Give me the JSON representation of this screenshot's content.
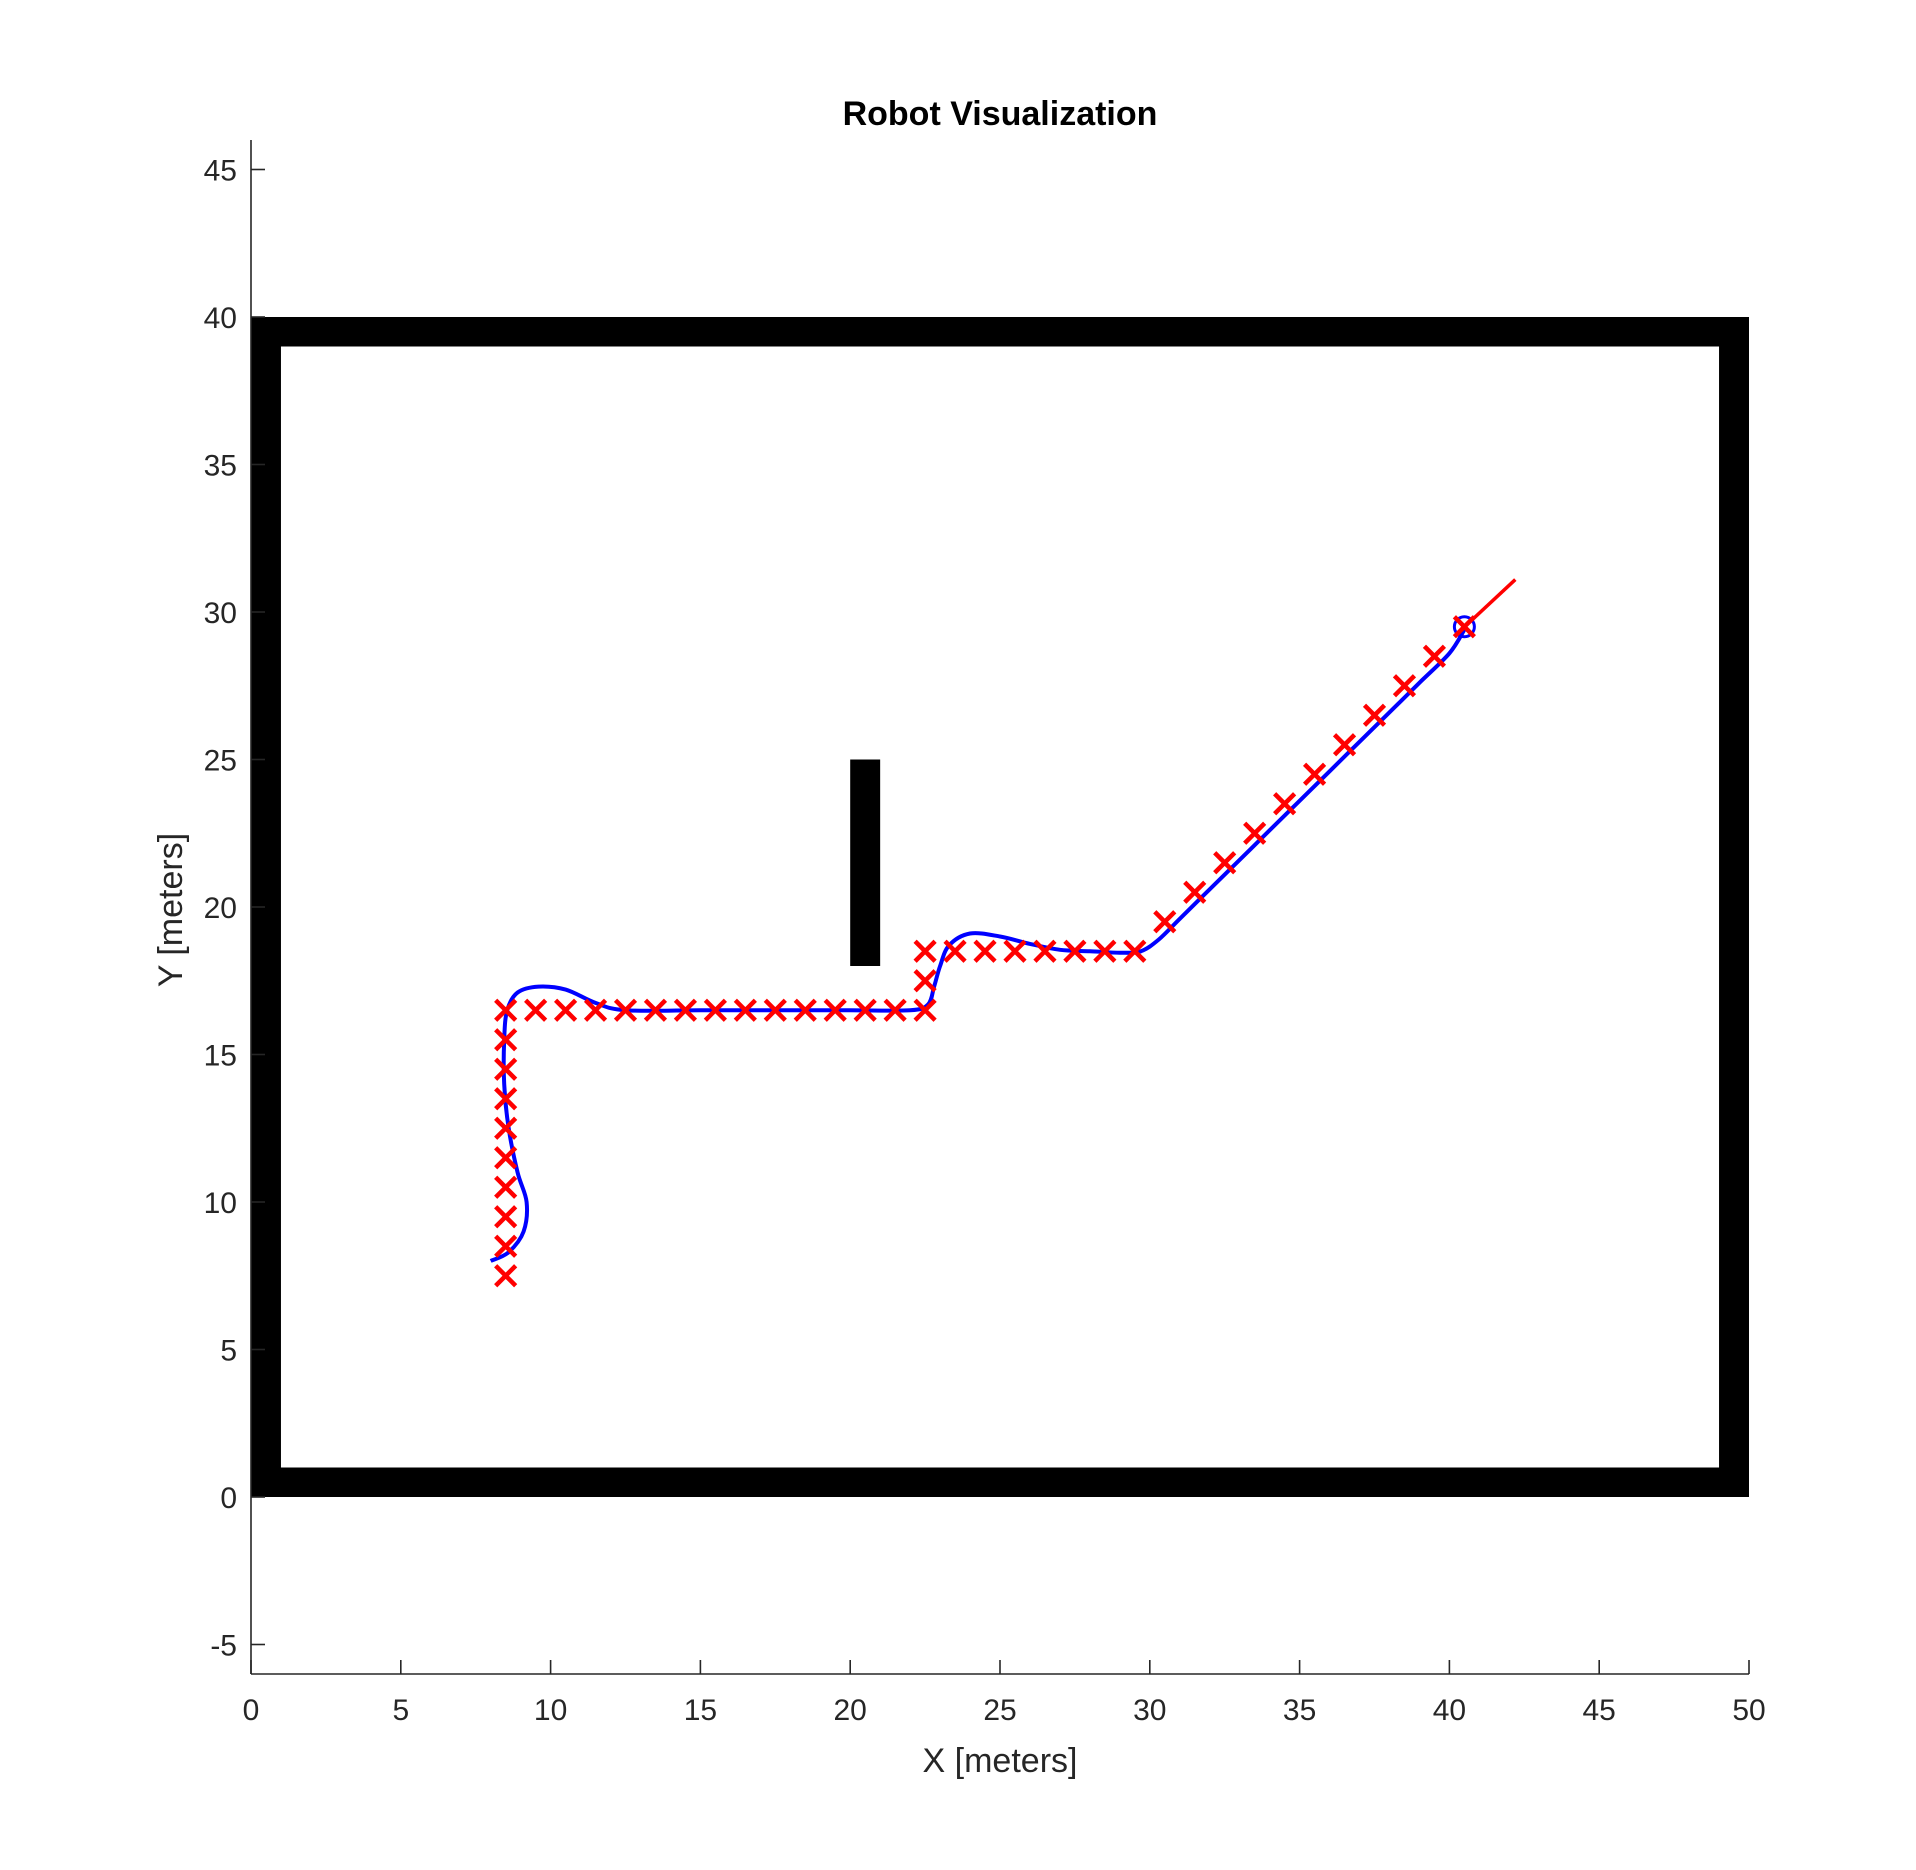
{
  "chart_data": {
    "type": "scatter",
    "title": "Robot Visualization",
    "xlabel": "X [meters]",
    "ylabel": "Y [meters]",
    "xlim": [
      0,
      50
    ],
    "ylim": [
      -6,
      46
    ],
    "xticks": [
      0,
      5,
      10,
      15,
      20,
      25,
      30,
      35,
      40,
      45,
      50
    ],
    "yticks": [
      -5,
      0,
      5,
      10,
      15,
      20,
      25,
      30,
      35,
      40,
      45
    ],
    "grid": false,
    "colors": {
      "walls": "#000000",
      "path": "#0000ff",
      "waypoints": "#ff0000",
      "heading": "#ff0000"
    },
    "walls": [
      {
        "name": "top wall",
        "x": [
          0,
          50
        ],
        "y": [
          39,
          40
        ]
      },
      {
        "name": "bottom wall",
        "x": [
          0,
          50
        ],
        "y": [
          0,
          1
        ]
      },
      {
        "name": "left wall",
        "x": [
          0,
          1
        ],
        "y": [
          0,
          40
        ]
      },
      {
        "name": "right wall",
        "x": [
          49,
          50
        ],
        "y": [
          0,
          40
        ]
      },
      {
        "name": "obstacle",
        "x": [
          20,
          21
        ],
        "y": [
          18,
          25
        ]
      }
    ],
    "waypoints": {
      "marker": "x",
      "x": [
        8.5,
        8.5,
        8.5,
        8.5,
        8.5,
        8.5,
        8.5,
        8.5,
        8.5,
        8.5,
        9.5,
        10.5,
        11.5,
        12.5,
        13.5,
        14.5,
        15.5,
        16.5,
        17.5,
        18.5,
        19.5,
        20.5,
        21.5,
        22.5,
        22.5,
        22.5,
        23.5,
        24.5,
        25.5,
        26.5,
        27.5,
        28.5,
        29.5,
        30.5,
        31.5,
        32.5,
        33.5,
        34.5,
        35.5,
        36.5,
        37.5,
        38.5,
        39.5,
        40.5
      ],
      "y": [
        7.5,
        8.5,
        9.5,
        10.5,
        11.5,
        12.5,
        13.5,
        14.5,
        15.5,
        16.5,
        16.5,
        16.5,
        16.5,
        16.5,
        16.5,
        16.5,
        16.5,
        16.5,
        16.5,
        16.5,
        16.5,
        16.5,
        16.5,
        16.5,
        17.5,
        18.5,
        18.5,
        18.5,
        18.5,
        18.5,
        18.5,
        18.5,
        18.5,
        19.5,
        20.5,
        21.5,
        22.5,
        23.5,
        24.5,
        25.5,
        26.5,
        27.5,
        28.5,
        29.5
      ]
    },
    "path": {
      "x": [
        8.0,
        8.6,
        9.1,
        9.2,
        8.9,
        8.6,
        8.45,
        8.45,
        8.55,
        8.9,
        9.6,
        10.5,
        11.5,
        12.5,
        15,
        18,
        20,
        22,
        22.6,
        22.8,
        23.0,
        23.3,
        24.0,
        25.0,
        26.0,
        27.0,
        28.0,
        29.0,
        29.7,
        30.3,
        31.0,
        32.0,
        33.0,
        34.0,
        35.0,
        36.0,
        37.0,
        38.0,
        39.0,
        40.0,
        40.5
      ],
      "y": [
        8.0,
        8.3,
        9.0,
        10.0,
        11.0,
        12.5,
        14.0,
        15.5,
        16.5,
        17.1,
        17.3,
        17.2,
        16.75,
        16.5,
        16.5,
        16.5,
        16.5,
        16.5,
        16.7,
        17.3,
        18.0,
        18.7,
        19.1,
        19.0,
        18.75,
        18.55,
        18.5,
        18.45,
        18.5,
        18.9,
        19.6,
        20.6,
        21.6,
        22.6,
        23.6,
        24.6,
        25.6,
        26.6,
        27.6,
        28.6,
        29.4
      ]
    },
    "robot": {
      "x": 40.5,
      "y": 29.5
    },
    "heading_line": {
      "x": [
        40.3,
        42.2
      ],
      "y": [
        29.3,
        31.1
      ]
    }
  }
}
